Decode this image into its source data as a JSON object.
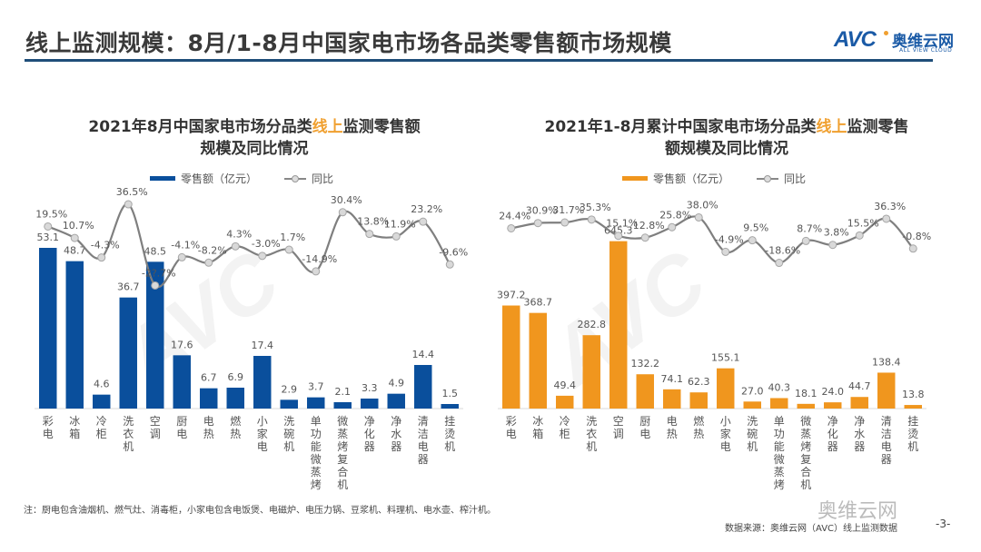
{
  "header": {
    "title": "线上监测规模：8月/1-8月中国家电市场各品类零售额市场规模",
    "logo_mark": "AVC",
    "logo_cn": "奥维云网",
    "logo_en": "ALL VIEW CLOUD"
  },
  "colors": {
    "bar_left": "#0a4f9c",
    "bar_right": "#f0961e",
    "line": "#7f7f7f",
    "marker_fill": "#d9d9d9",
    "highlight": "#f0a030",
    "title_rule": "#1f4e79"
  },
  "chart_data": [
    {
      "type": "bar",
      "title_pre": "2021年8月中国家电市场分品类",
      "title_hl": "线上",
      "title_post": "监测零售额规模及同比情况",
      "legend": [
        "零售额（亿元）",
        "同比"
      ],
      "legend_placement": "top-center",
      "categories": [
        "彩电",
        "冰箱",
        "冷柜",
        "洗衣机",
        "空调",
        "厨电",
        "电热",
        "燃热",
        "小家电",
        "洗碗机",
        "单功能微蒸烤",
        "微蒸烤复合机",
        "净化器",
        "净水器",
        "清洁电器",
        "挂烫机"
      ],
      "series": [
        {
          "name": "零售额（亿元）",
          "type": "bar",
          "values": [
            53.1,
            48.7,
            4.6,
            36.7,
            48.5,
            17.6,
            6.7,
            6.9,
            17.4,
            2.9,
            3.7,
            2.1,
            3.3,
            4.9,
            14.4,
            1.5
          ],
          "labels": [
            "53.1",
            "48.7",
            "4.6",
            "36.7",
            "48.5",
            "17.6",
            "6.7",
            "6.9",
            "17.4",
            "2.9",
            "3.7",
            "2.1",
            "3.3",
            "4.9",
            "14.4",
            "1.5"
          ]
        },
        {
          "name": "同比",
          "type": "line",
          "unit": "%",
          "values": [
            19.5,
            10.7,
            -4.3,
            36.5,
            -25.7,
            -4.1,
            -8.2,
            4.3,
            -3.0,
            1.7,
            -14.9,
            30.4,
            13.8,
            11.9,
            23.2,
            -9.6
          ],
          "labels": [
            "19.5%",
            "10.7%",
            "-4.3%",
            "36.5%",
            "-2?.7%",
            "-4.1%",
            "-8.2%",
            "4.3%",
            "-3.0%",
            "1.7%",
            "-14.9%",
            "30.4%",
            "13.8%",
            "11.9%",
            "23.2%",
            "-9.6%"
          ]
        }
      ],
      "ylim_bar": [
        0,
        60
      ],
      "ylim_line": [
        -120,
        40
      ],
      "grid": false
    },
    {
      "type": "bar",
      "title_pre": "2021年1-8月累计中国家电市场分品类",
      "title_hl": "线上",
      "title_post": "监测零售额规模及同比情况",
      "legend": [
        "零售额（亿元）",
        "同比"
      ],
      "legend_placement": "top-center",
      "categories": [
        "彩电",
        "冰箱",
        "冷柜",
        "洗衣机",
        "空调",
        "厨电",
        "电热",
        "燃热",
        "小家电",
        "洗碗机",
        "单功能微蒸烤",
        "微蒸烤复合机",
        "净化器",
        "净水器",
        "清洁电器",
        "挂烫机"
      ],
      "series": [
        {
          "name": "零售额（亿元）",
          "type": "bar",
          "values": [
            397.2,
            368.7,
            49.4,
            282.8,
            645.3,
            132.2,
            74.1,
            62.3,
            155.1,
            27.0,
            40.3,
            18.1,
            24.0,
            44.7,
            138.4,
            13.8
          ],
          "labels": [
            "397.2",
            "368.7",
            "49.4",
            "282.8",
            "645.3",
            "132.2",
            "74.1",
            "62.3",
            "155.1",
            "27.0",
            "40.3",
            "18.1",
            "24.0",
            "44.7",
            "138.4",
            "13.8"
          ]
        },
        {
          "name": "同比",
          "type": "line",
          "unit": "%",
          "values": [
            24.4,
            30.9,
            31.7,
            35.3,
            15.1,
            12.8,
            25.8,
            38.0,
            -4.9,
            9.5,
            -18.6,
            8.7,
            3.8,
            15.5,
            36.3,
            -0.8
          ],
          "labels": [
            "24.4%",
            "30.9%",
            "31.7%",
            "35.3%",
            "15.1%",
            "12.8%",
            "25.8%",
            "38.0%",
            "-4.9%",
            "9.5%",
            "-18.6%",
            "8.7%",
            "3.8%",
            "15.5%",
            "36.3%",
            "-0.8%"
          ]
        }
      ],
      "ylim_bar": [
        0,
        700
      ],
      "ylim_line": [
        -200,
        60
      ],
      "grid": false
    }
  ],
  "footer": {
    "note": "注：厨电包含油烟机、燃气灶、消毒柜，小家电包含电饭煲、电磁炉、电压力锅、豆浆机、料理机、电水壶、榨汁机。",
    "source": "数据来源：奥维云网（AVC）线上监测数据",
    "page_number": "-3-",
    "wechat_watermark": "奥维云网"
  }
}
